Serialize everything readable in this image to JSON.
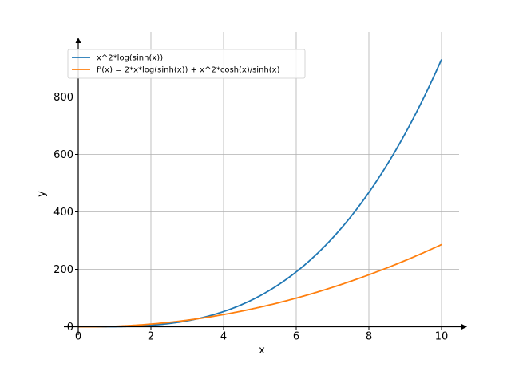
{
  "chart_data": {
    "type": "line",
    "xlabel": "x",
    "ylabel": "y",
    "xlim": [
      0,
      10.5
    ],
    "ylim": [
      0,
      970
    ],
    "grid": true,
    "legend_position": "top-left",
    "x_ticks": [
      0,
      2,
      4,
      6,
      8,
      10
    ],
    "y_ticks": [
      0,
      200,
      400,
      600,
      800
    ],
    "x_tick_labels": [
      "0",
      "2",
      "4",
      "6",
      "8",
      "10"
    ],
    "y_tick_labels": [
      "0",
      "200",
      "400",
      "600",
      "800"
    ],
    "x_domain": [
      0,
      10
    ],
    "series": [
      {
        "name": "x^2*log(sinh(x))",
        "color": "#1f77b4",
        "function": "f"
      },
      {
        "name": "f'(x) = 2*x*log(sinh(x)) + x^2*cosh(x)/sinh(x)",
        "color": "#ff7f0e",
        "function": "fprime"
      }
    ]
  }
}
